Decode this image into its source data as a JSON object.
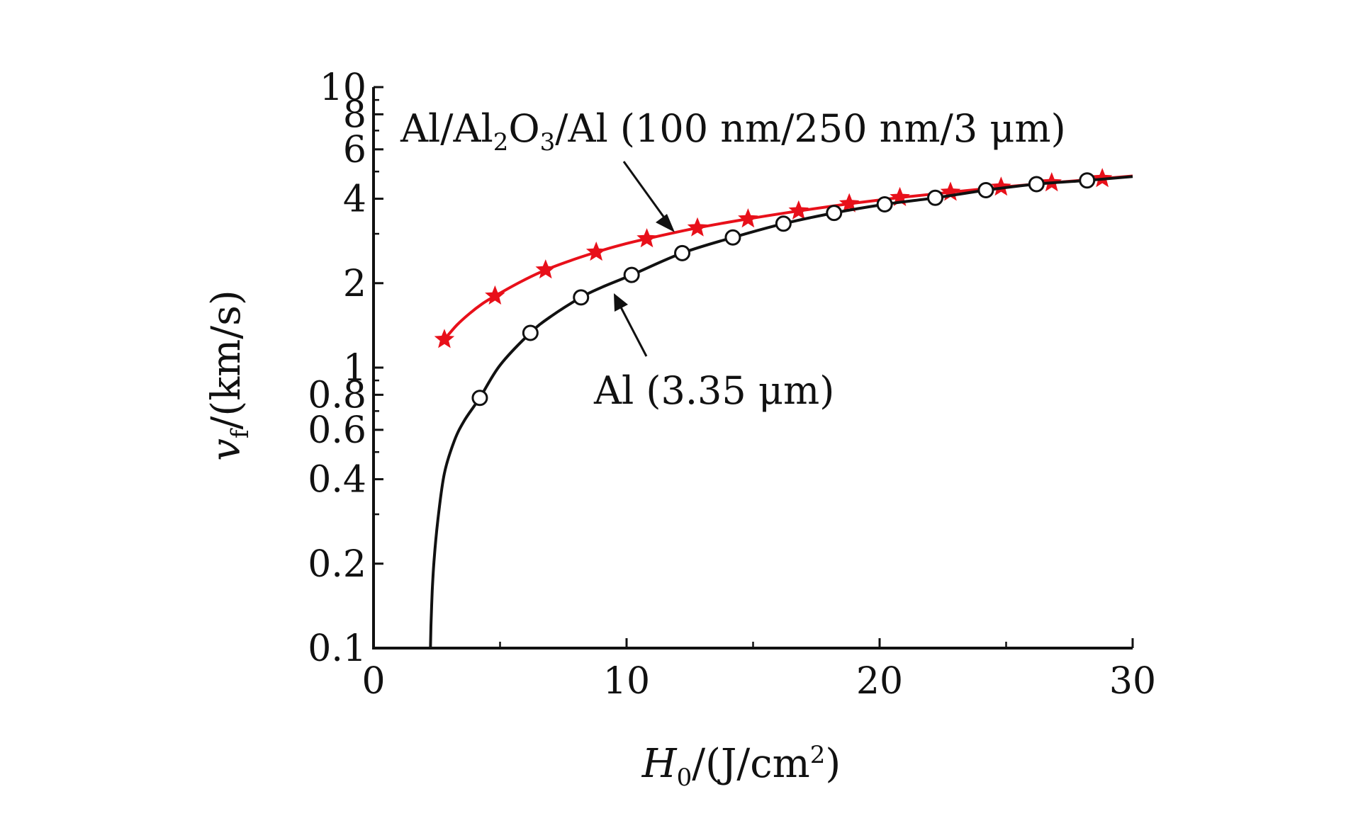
{
  "chart_data": {
    "type": "line",
    "title": "",
    "xlabel": {
      "main": "H",
      "sub": "0",
      "unit": "/(J/cm",
      "sup": "2",
      "close": ")"
    },
    "ylabel": {
      "main": "v",
      "sub": "f",
      "unit": "/(km/s)"
    },
    "xlim": [
      0,
      30
    ],
    "ylim": [
      0.1,
      10
    ],
    "yscale": "log",
    "grid": false,
    "x_ticks": [
      0,
      10,
      20,
      30
    ],
    "x_tick_labels": [
      "0",
      "10",
      "20",
      "30"
    ],
    "y_ticks": [
      0.1,
      0.2,
      0.4,
      0.6,
      0.8,
      1,
      2,
      4,
      6,
      8,
      10
    ],
    "y_tick_labels": [
      "0.1",
      "0.2",
      "0.4",
      "0.6",
      "0.8",
      "1",
      "2",
      "4",
      "6",
      "8",
      "10"
    ],
    "series": [
      {
        "name": "Al/Al2O3/Al (100 nm/250 nm/3 μm)",
        "label_parts": [
          "Al/Al",
          "2",
          "O",
          "3",
          "/Al (100 nm/250 nm/3 μm)"
        ],
        "color": "#e8101a",
        "marker": "star",
        "x": [
          2.8,
          4.8,
          6.8,
          8.8,
          10.8,
          12.8,
          14.8,
          16.8,
          18.8,
          20.8,
          22.8,
          24.8,
          26.8,
          28.8
        ],
        "values": [
          1.26,
          1.8,
          2.23,
          2.58,
          2.88,
          3.15,
          3.39,
          3.62,
          3.84,
          4.04,
          4.22,
          4.4,
          4.56,
          4.72
        ],
        "curve_x": [
          2.8,
          3.3,
          3.8,
          4.3,
          4.8,
          5.8,
          6.8,
          7.8,
          8.8,
          9.8,
          10.8,
          12.8,
          14.8,
          16.8,
          18.8,
          20.8,
          22.8,
          24.8,
          26.8,
          28.8,
          30
        ],
        "curve_values": [
          1.26,
          1.42,
          1.56,
          1.69,
          1.8,
          2.02,
          2.23,
          2.41,
          2.58,
          2.74,
          2.88,
          3.15,
          3.39,
          3.62,
          3.84,
          4.04,
          4.22,
          4.4,
          4.56,
          4.72,
          4.82
        ]
      },
      {
        "name": "Al (3.35 μm)",
        "label_parts": [
          "Al (3.35 μm)"
        ],
        "color": "#111111",
        "marker": "open-circle",
        "x": [
          4.2,
          6.2,
          8.2,
          10.2,
          12.2,
          14.2,
          16.2,
          18.2,
          20.2,
          22.2,
          24.2,
          26.2,
          28.2
        ],
        "values": [
          0.78,
          1.33,
          1.78,
          2.14,
          2.56,
          2.91,
          3.26,
          3.56,
          3.82,
          4.03,
          4.29,
          4.51,
          4.65
        ],
        "curve_x": [
          2.25,
          2.27,
          2.32,
          2.4,
          2.55,
          2.8,
          3.2,
          3.6,
          4.2,
          5.0,
          6.2,
          7.0,
          8.2,
          9.0,
          10.2,
          12.2,
          14.2,
          16.2,
          18.2,
          20.2,
          22.2,
          24.2,
          26.2,
          28.2,
          30
        ],
        "curve_values": [
          0.1,
          0.12,
          0.16,
          0.21,
          0.29,
          0.42,
          0.55,
          0.65,
          0.78,
          1.02,
          1.33,
          1.52,
          1.78,
          1.93,
          2.14,
          2.56,
          2.91,
          3.26,
          3.56,
          3.82,
          4.03,
          4.29,
          4.51,
          4.65,
          4.8
        ]
      }
    ],
    "annotations": [
      {
        "series": 0,
        "text": "Al/Al2O3/Al (100 nm/250 nm/3 μm)",
        "arrow_to": [
          12.0,
          3.2
        ]
      },
      {
        "series": 1,
        "text": "Al (3.35 μm)",
        "arrow_to": [
          9.3,
          1.95
        ]
      }
    ]
  }
}
